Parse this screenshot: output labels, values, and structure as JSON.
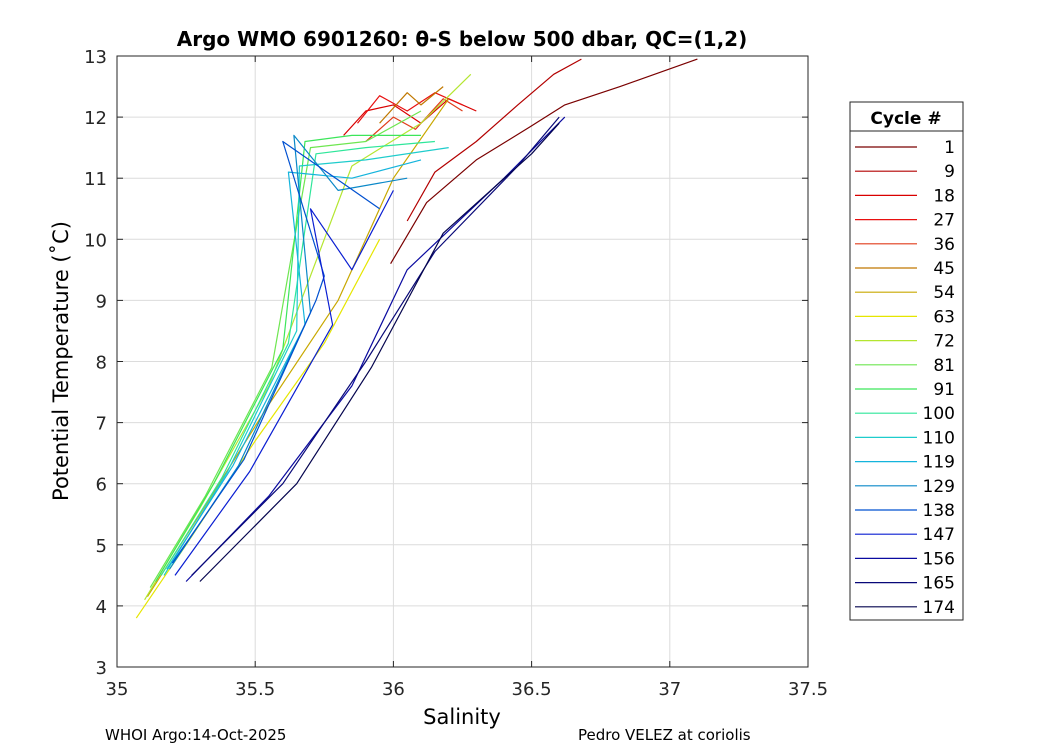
{
  "chart_data": {
    "type": "line",
    "title": "Argo WMO 6901260: θ-S below 500 dbar,  QC=(1,2)",
    "xlabel": "Salinity",
    "ylabel": "Potential Temperature (˚C)",
    "xlim": [
      35,
      37.5
    ],
    "ylim": [
      3,
      13
    ],
    "x_ticks": [
      "35",
      "35.5",
      "36",
      "36.5",
      "37",
      "37.5"
    ],
    "y_ticks": [
      "3",
      "4",
      "5",
      "6",
      "7",
      "8",
      "9",
      "10",
      "11",
      "12",
      "13"
    ],
    "grid": true,
    "legend": {
      "title": "Cycle #",
      "placement": "right",
      "entries": [
        {
          "label": "1",
          "color": "#7a0000"
        },
        {
          "label": "9",
          "color": "#b30000"
        },
        {
          "label": "18",
          "color": "#d90000"
        },
        {
          "label": "27",
          "color": "#e81010"
        },
        {
          "label": "36",
          "color": "#e03c1a"
        },
        {
          "label": "45",
          "color": "#c07800"
        },
        {
          "label": "54",
          "color": "#c8a800"
        },
        {
          "label": "63",
          "color": "#e6e600"
        },
        {
          "label": "72",
          "color": "#b4e630"
        },
        {
          "label": "81",
          "color": "#6ee650"
        },
        {
          "label": "91",
          "color": "#3ce65a"
        },
        {
          "label": "100",
          "color": "#2ee69a"
        },
        {
          "label": "110",
          "color": "#1ecccc"
        },
        {
          "label": "119",
          "color": "#14b4dc"
        },
        {
          "label": "129",
          "color": "#0a88c8"
        },
        {
          "label": "138",
          "color": "#0050d0"
        },
        {
          "label": "147",
          "color": "#0a1ed2"
        },
        {
          "label": "156",
          "color": "#0a0aa0"
        },
        {
          "label": "165",
          "color": "#080878"
        },
        {
          "label": "174",
          "color": "#04044e"
        }
      ]
    },
    "series": [
      {
        "label": "1",
        "color": "#7a0000",
        "x": [
          35.99,
          36.12,
          36.3,
          36.48,
          36.62,
          36.82,
          37.1
        ],
        "y": [
          9.6,
          10.6,
          11.3,
          11.8,
          12.2,
          12.5,
          12.95
        ]
      },
      {
        "label": "9",
        "color": "#b30000",
        "x": [
          36.05,
          36.15,
          36.3,
          36.45,
          36.58,
          36.68
        ],
        "y": [
          10.3,
          11.1,
          11.6,
          12.2,
          12.7,
          12.95
        ]
      },
      {
        "label": "18",
        "color": "#d90000",
        "x": [
          35.82,
          35.9,
          36.0,
          36.1,
          36.2,
          36.3
        ],
        "y": [
          11.7,
          12.1,
          12.2,
          11.9,
          12.3,
          12.1
        ]
      },
      {
        "label": "27",
        "color": "#e81010",
        "x": [
          35.87,
          35.95,
          36.05,
          36.15,
          36.25
        ],
        "y": [
          11.9,
          12.35,
          12.1,
          12.4,
          12.2
        ]
      },
      {
        "label": "36",
        "color": "#e03c1a",
        "x": [
          35.9,
          36.0,
          36.08,
          36.18,
          36.25
        ],
        "y": [
          11.6,
          12.0,
          11.8,
          12.3,
          12.1
        ]
      },
      {
        "label": "45",
        "color": "#c07800",
        "x": [
          35.95,
          36.05,
          36.1,
          36.18
        ],
        "y": [
          11.9,
          12.4,
          12.2,
          12.5
        ]
      },
      {
        "label": "54",
        "color": "#c8a800",
        "x": [
          35.11,
          35.3,
          35.55,
          35.8,
          36.0,
          36.2
        ],
        "y": [
          4.15,
          5.5,
          7.3,
          9.0,
          11.0,
          12.3
        ]
      },
      {
        "label": "63",
        "color": "#e6e600",
        "x": [
          35.07,
          35.25,
          35.5,
          35.75,
          35.95
        ],
        "y": [
          3.8,
          5.0,
          6.7,
          8.3,
          10.0
        ]
      },
      {
        "label": "72",
        "color": "#b4e630",
        "x": [
          35.1,
          35.3,
          35.55,
          35.85,
          36.1,
          36.28
        ],
        "y": [
          4.1,
          5.6,
          7.6,
          11.2,
          11.9,
          12.7
        ]
      },
      {
        "label": "81",
        "color": "#6ee650",
        "x": [
          35.12,
          35.32,
          35.56,
          35.7,
          35.9,
          36.1
        ],
        "y": [
          4.3,
          5.8,
          7.9,
          11.5,
          11.6,
          12.1
        ]
      },
      {
        "label": "91",
        "color": "#3ce65a",
        "x": [
          35.14,
          35.35,
          35.6,
          35.68,
          35.85,
          36.1
        ],
        "y": [
          4.4,
          6.0,
          8.2,
          11.6,
          11.7,
          11.7
        ]
      },
      {
        "label": "100",
        "color": "#2ee69a",
        "x": [
          35.16,
          35.38,
          35.62,
          35.72,
          35.9,
          36.15
        ],
        "y": [
          4.5,
          6.1,
          8.3,
          11.4,
          11.5,
          11.6
        ]
      },
      {
        "label": "110",
        "color": "#1ecccc",
        "x": [
          35.17,
          35.4,
          35.65,
          35.66,
          35.9,
          36.2
        ],
        "y": [
          4.5,
          6.2,
          8.5,
          11.2,
          11.3,
          11.5
        ]
      },
      {
        "label": "119",
        "color": "#14b4dc",
        "x": [
          35.18,
          35.42,
          35.68,
          35.62,
          35.85,
          36.1
        ],
        "y": [
          4.6,
          6.3,
          8.6,
          11.1,
          11.0,
          11.3
        ]
      },
      {
        "label": "129",
        "color": "#0a88c8",
        "x": [
          35.19,
          35.44,
          35.7,
          35.64,
          35.8,
          36.05
        ],
        "y": [
          4.6,
          6.3,
          8.8,
          11.7,
          10.8,
          11.0
        ]
      },
      {
        "label": "138",
        "color": "#0050d0",
        "x": [
          35.2,
          35.46,
          35.72,
          35.75,
          35.6,
          35.95
        ],
        "y": [
          4.7,
          6.4,
          9.0,
          9.4,
          11.6,
          10.5
        ]
      },
      {
        "label": "147",
        "color": "#0a1ed2",
        "x": [
          35.21,
          35.48,
          35.78,
          35.7,
          35.85,
          36.0
        ],
        "y": [
          4.5,
          6.2,
          8.6,
          10.5,
          9.5,
          10.8
        ]
      },
      {
        "label": "156",
        "color": "#0a0aa0",
        "x": [
          35.25,
          35.55,
          35.85,
          36.05,
          36.4,
          36.62
        ],
        "y": [
          4.4,
          5.8,
          7.6,
          9.5,
          11.0,
          12.0
        ]
      },
      {
        "label": "165",
        "color": "#080878",
        "x": [
          35.27,
          35.6,
          35.9,
          36.15,
          36.45,
          36.6
        ],
        "y": [
          4.5,
          6.0,
          8.0,
          9.8,
          11.2,
          12.0
        ]
      },
      {
        "label": "174",
        "color": "#04044e",
        "x": [
          35.3,
          35.65,
          35.92,
          36.18,
          36.5,
          36.6
        ],
        "y": [
          4.4,
          6.0,
          7.9,
          10.1,
          11.4,
          11.9
        ]
      }
    ]
  },
  "footer": {
    "left": "WHOI Argo:14-Oct-2025",
    "right": "Pedro VELEZ at coriolis"
  }
}
